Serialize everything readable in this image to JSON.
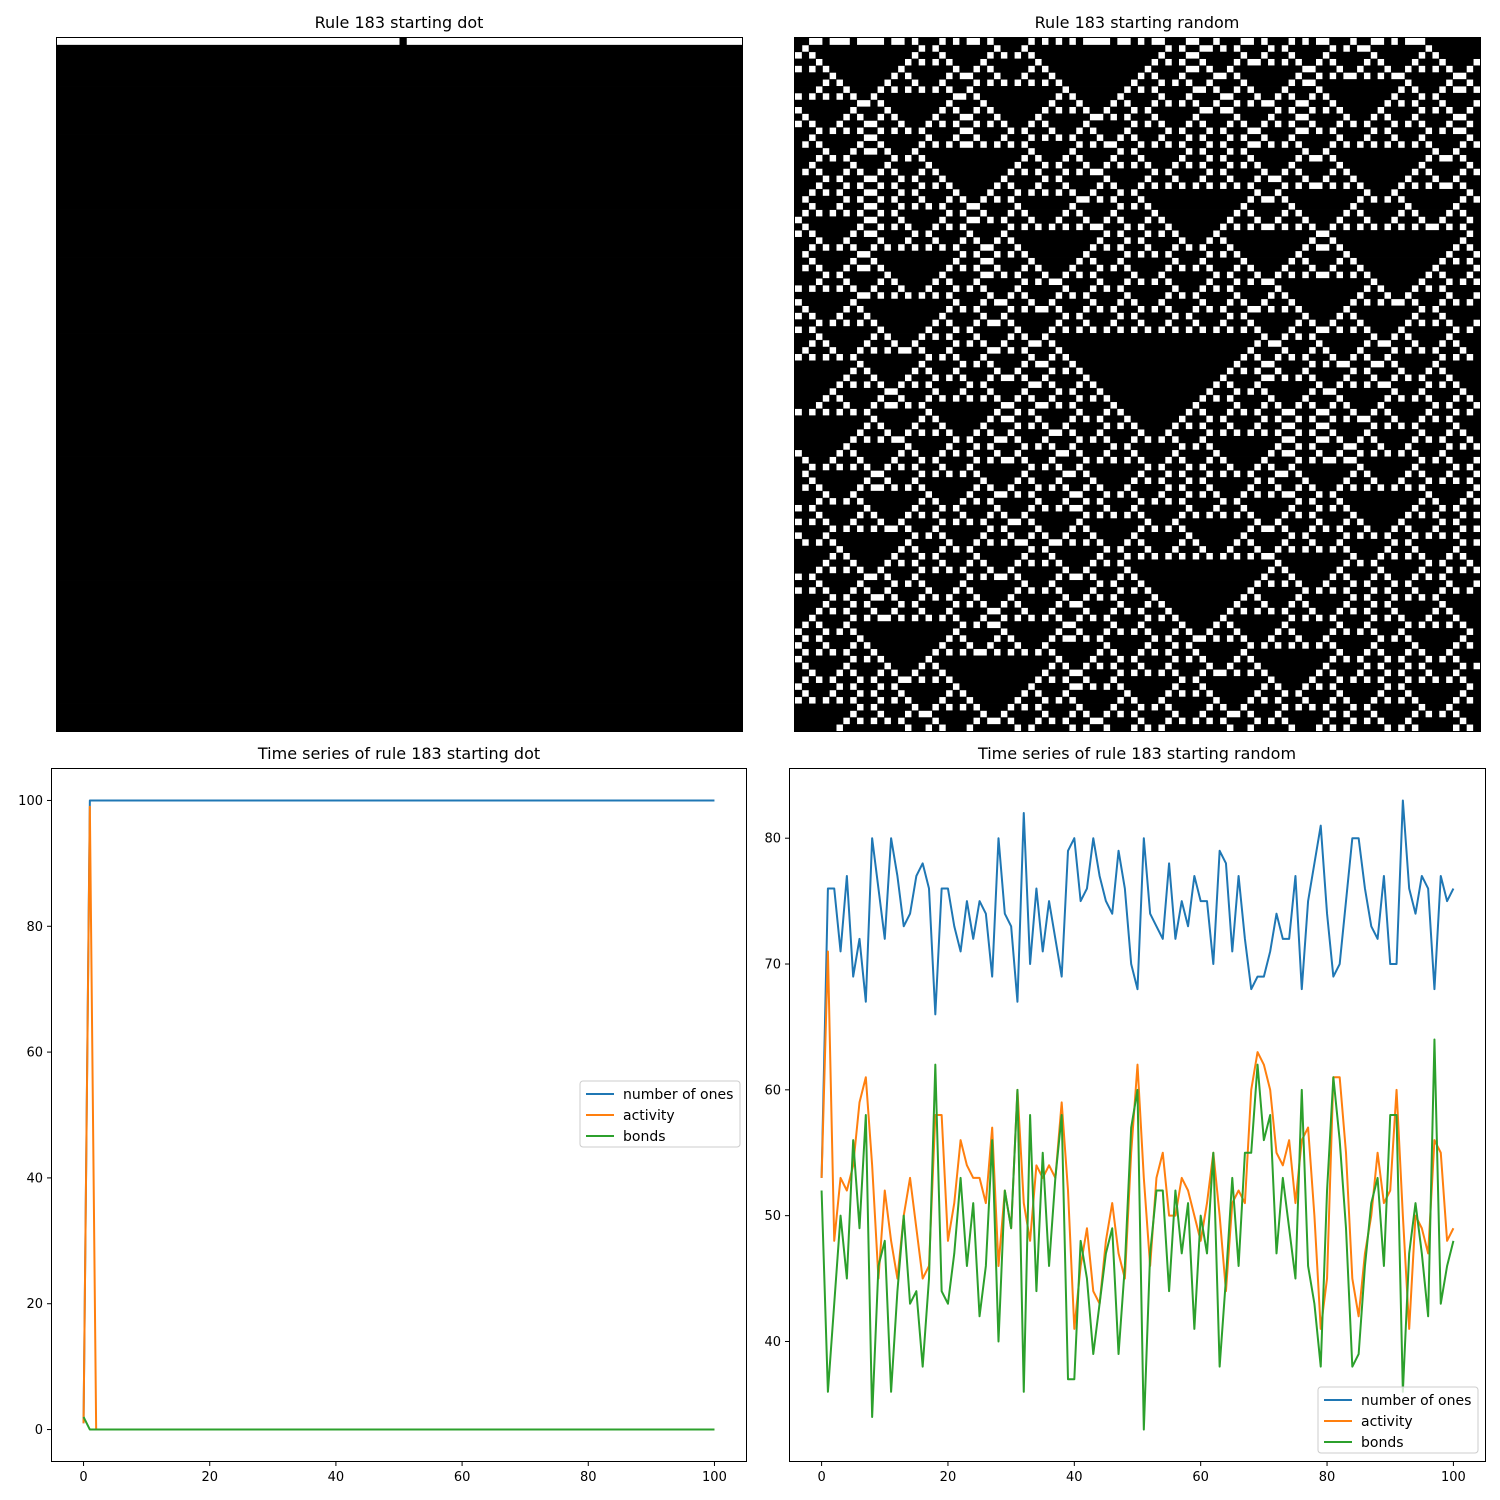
{
  "chart_data": [
    {
      "type": "heatmap",
      "title": "Rule 183 starting dot",
      "rule": 183,
      "cells": 100,
      "steps": 101,
      "initial": "dot",
      "colors": {
        "one": "#000000",
        "zero": "#ffffff"
      }
    },
    {
      "type": "heatmap",
      "title": "Rule 183 starting random",
      "rule": 183,
      "cells": 100,
      "steps": 101,
      "initial": "random",
      "colors": {
        "one": "#000000",
        "zero": "#ffffff"
      }
    },
    {
      "type": "line",
      "title": "Time series of rule 183 starting dot",
      "xlabel": "",
      "ylabel": "",
      "xlim": [
        -5,
        105
      ],
      "ylim": [
        -5,
        105
      ],
      "xticks": [
        0,
        20,
        40,
        60,
        80,
        100
      ],
      "yticks": [
        0,
        20,
        40,
        60,
        80,
        100
      ],
      "grid": false,
      "legend": {
        "position": "center-right",
        "entries": [
          "number of ones",
          "activity",
          "bonds"
        ]
      },
      "series": [
        {
          "name": "number of ones",
          "color": "#1f77b4",
          "points": [
            [
              0,
              1
            ],
            [
              1,
              100
            ],
            [
              100,
              100
            ]
          ]
        },
        {
          "name": "activity",
          "color": "#ff7f0e",
          "points": [
            [
              0,
              1
            ],
            [
              1,
              99
            ],
            [
              2,
              0
            ],
            [
              100,
              0
            ]
          ]
        },
        {
          "name": "bonds",
          "color": "#2ca02c",
          "points": [
            [
              0,
              2
            ],
            [
              1,
              0
            ],
            [
              100,
              0
            ]
          ]
        }
      ]
    },
    {
      "type": "line",
      "title": "Time series of rule 183 starting random",
      "xlabel": "",
      "ylabel": "",
      "xlim": [
        -5,
        105
      ],
      "ylim": [
        30.5,
        85.5
      ],
      "xticks": [
        0,
        20,
        40,
        60,
        80,
        100
      ],
      "yticks": [
        40,
        50,
        60,
        70,
        80
      ],
      "grid": false,
      "legend": {
        "position": "lower-right",
        "entries": [
          "number of ones",
          "activity",
          "bonds"
        ]
      },
      "x": [
        0,
        1,
        2,
        3,
        4,
        5,
        6,
        7,
        8,
        9,
        10,
        11,
        12,
        13,
        14,
        15,
        16,
        17,
        18,
        19,
        20,
        21,
        22,
        23,
        24,
        25,
        26,
        27,
        28,
        29,
        30,
        31,
        32,
        33,
        34,
        35,
        36,
        37,
        38,
        39,
        40,
        41,
        42,
        43,
        44,
        45,
        46,
        47,
        48,
        49,
        50,
        51,
        52,
        53,
        54,
        55,
        56,
        57,
        58,
        59,
        60,
        61,
        62,
        63,
        64,
        65,
        66,
        67,
        68,
        69,
        70,
        71,
        72,
        73,
        74,
        75,
        76,
        77,
        78,
        79,
        80,
        81,
        82,
        83,
        84,
        85,
        86,
        87,
        88,
        89,
        90,
        91,
        92,
        93,
        94,
        95,
        96,
        97,
        98,
        99,
        100
      ],
      "series": [
        {
          "name": "number of ones",
          "color": "#1f77b4",
          "values": [
            53,
            76,
            76,
            71,
            77,
            69,
            72,
            67,
            80,
            76,
            72,
            80,
            77,
            73,
            74,
            77,
            78,
            76,
            66,
            76,
            76,
            73,
            71,
            75,
            72,
            75,
            74,
            69,
            80,
            74,
            73,
            67,
            82,
            70,
            76,
            71,
            75,
            72,
            69,
            79,
            80,
            75,
            76,
            80,
            77,
            75,
            74,
            79,
            76,
            70,
            68,
            80,
            74,
            73,
            72,
            78,
            72,
            75,
            73,
            77,
            75,
            75,
            70,
            79,
            78,
            71,
            77,
            72,
            68,
            69,
            69,
            71,
            74,
            72,
            72,
            77,
            68,
            75,
            78,
            81,
            74,
            69,
            70,
            75,
            80,
            80,
            76,
            73,
            72,
            77,
            70,
            70,
            83,
            76,
            74,
            77,
            76,
            68,
            77,
            75,
            76
          ]
        },
        {
          "name": "activity",
          "color": "#ff7f0e",
          "values": [
            53,
            71,
            48,
            53,
            52,
            54,
            59,
            61,
            54,
            45,
            52,
            48,
            45,
            50,
            53,
            49,
            45,
            46,
            58,
            58,
            48,
            51,
            56,
            54,
            53,
            53,
            51,
            57,
            46,
            52,
            49,
            60,
            51,
            48,
            54,
            53,
            54,
            53,
            59,
            52,
            41,
            46,
            49,
            44,
            43,
            48,
            51,
            47,
            45,
            55,
            62,
            53,
            46,
            53,
            55,
            50,
            50,
            53,
            52,
            50,
            48,
            51,
            55,
            50,
            44,
            51,
            52,
            51,
            60,
            63,
            62,
            60,
            55,
            54,
            56,
            51,
            56,
            57,
            50,
            41,
            45,
            61,
            61,
            55,
            45,
            42,
            47,
            50,
            55,
            51,
            52,
            60,
            50,
            41,
            50,
            49,
            47,
            56,
            55,
            48,
            49
          ]
        },
        {
          "name": "bonds",
          "color": "#2ca02c",
          "values": [
            52,
            36,
            43,
            50,
            45,
            56,
            49,
            58,
            34,
            46,
            48,
            36,
            44,
            50,
            43,
            44,
            38,
            45,
            62,
            44,
            43,
            47,
            53,
            46,
            51,
            42,
            46,
            56,
            40,
            52,
            49,
            60,
            36,
            58,
            44,
            55,
            46,
            53,
            58,
            37,
            37,
            48,
            45,
            39,
            43,
            47,
            49,
            39,
            46,
            57,
            60,
            33,
            47,
            52,
            52,
            44,
            52,
            47,
            51,
            41,
            50,
            47,
            55,
            38,
            45,
            53,
            46,
            55,
            55,
            62,
            56,
            58,
            47,
            53,
            49,
            45,
            60,
            46,
            43,
            38,
            52,
            61,
            56,
            49,
            38,
            39,
            46,
            51,
            53,
            46,
            58,
            58,
            36,
            47,
            51,
            47,
            42,
            64,
            43,
            46,
            48
          ]
        }
      ]
    }
  ]
}
